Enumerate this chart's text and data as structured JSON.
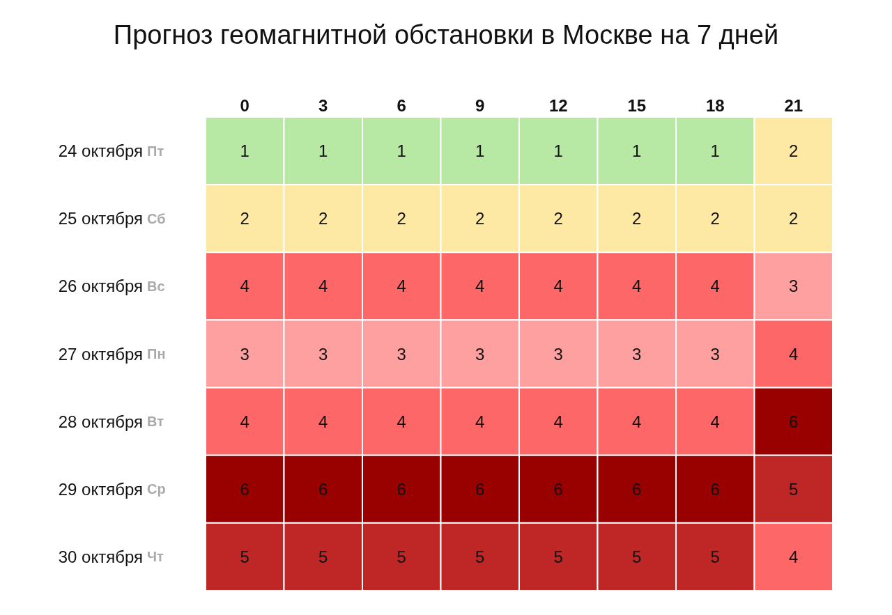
{
  "chart_data": {
    "type": "heatmap",
    "title": "Прогноз геомагнитной обстановки в Москве на 7 дней",
    "categories": [
      "0",
      "3",
      "6",
      "9",
      "12",
      "15",
      "18",
      "21"
    ],
    "y_categories": [
      "24 октября",
      "25 октября",
      "26 октября",
      "27 октября",
      "28 октября",
      "29 октября",
      "30 октября"
    ],
    "y2_categories": [
      "Пт",
      "Сб",
      "Вс",
      "Пн",
      "Вт",
      "Ср",
      "Чт"
    ],
    "cells": [
      [
        1,
        1,
        1,
        1,
        1,
        1,
        1,
        2
      ],
      [
        2,
        2,
        2,
        2,
        2,
        2,
        2,
        2
      ],
      [
        4,
        4,
        4,
        4,
        4,
        4,
        4,
        3
      ],
      [
        3,
        3,
        3,
        3,
        3,
        3,
        3,
        4
      ],
      [
        4,
        4,
        4,
        4,
        4,
        4,
        4,
        6
      ],
      [
        6,
        6,
        6,
        6,
        6,
        6,
        6,
        5
      ],
      [
        5,
        5,
        5,
        5,
        5,
        5,
        5,
        4
      ]
    ],
    "colors": [
      "#b7e8a4",
      "#fde9a3",
      "#fda09f",
      "#fe6767",
      "#bf2626",
      "#990000"
    ],
    "data_labels": true
  }
}
